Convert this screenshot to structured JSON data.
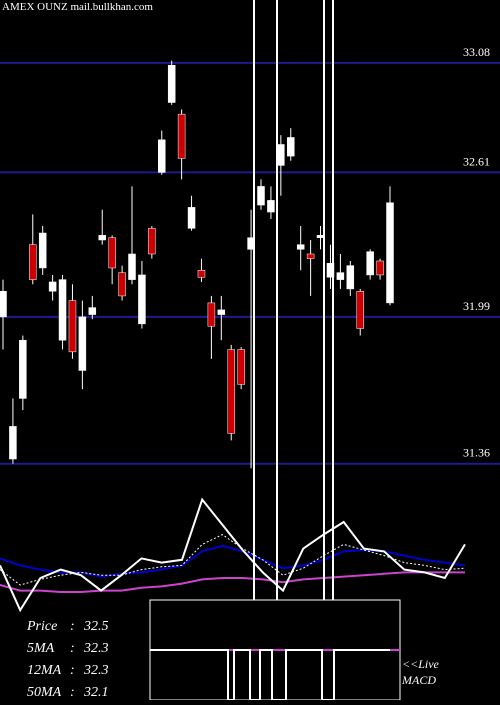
{
  "title": "AMEX  OUNZ mail.bullkhan.com",
  "chart_data": [
    {
      "type": "candlestick",
      "up_color": "#ffffff",
      "down_color": "#cc0000",
      "grid_color": "#1c1c8f",
      "ylim": [
        31.29,
        33.35
      ],
      "yticks": [
        33.08,
        32.61,
        31.99,
        31.36
      ],
      "grid": true,
      "open": [
        31.99,
        31.38,
        31.64,
        32.3,
        32.2,
        32.1,
        31.89,
        32.06,
        31.76,
        32.0,
        32.32,
        32.33,
        32.18,
        32.15,
        31.96,
        32.37,
        32.61,
        32.91,
        32.86,
        32.37,
        32.19,
        32.05,
        32.0,
        31.85,
        31.85,
        32.28,
        32.47,
        32.44,
        32.64,
        32.68,
        32.28,
        32.26,
        32.33,
        32.16,
        32.15,
        32.11,
        32.1,
        32.17,
        32.23,
        32.05
      ],
      "high": [
        32.15,
        31.64,
        31.91,
        32.43,
        32.38,
        32.17,
        32.17,
        32.13,
        32.06,
        32.08,
        32.45,
        32.34,
        32.21,
        32.55,
        32.23,
        32.38,
        32.79,
        33.09,
        32.88,
        32.51,
        32.24,
        32.08,
        32.08,
        31.87,
        31.86,
        32.45,
        32.58,
        32.55,
        32.77,
        32.8,
        32.38,
        32.32,
        32.38,
        32.3,
        32.26,
        32.23,
        32.11,
        32.28,
        32.24,
        32.55
      ],
      "low": [
        31.85,
        31.36,
        31.59,
        32.13,
        32.17,
        32.06,
        31.85,
        31.81,
        31.68,
        31.98,
        32.3,
        32.13,
        32.06,
        32.13,
        31.94,
        32.24,
        32.6,
        32.9,
        32.58,
        32.36,
        32.14,
        31.81,
        31.89,
        31.46,
        31.68,
        31.34,
        32.45,
        32.41,
        32.51,
        32.66,
        32.19,
        32.08,
        32.28,
        32.11,
        32.11,
        32.08,
        31.91,
        32.15,
        32.15,
        32.04
      ],
      "close": [
        32.1,
        31.52,
        31.89,
        32.15,
        32.35,
        32.14,
        32.15,
        31.84,
        31.99,
        32.03,
        32.34,
        32.2,
        32.08,
        32.26,
        32.17,
        32.26,
        32.75,
        33.07,
        32.67,
        32.46,
        32.16,
        31.95,
        32.02,
        31.49,
        31.7,
        32.33,
        32.55,
        32.49,
        32.73,
        32.76,
        32.3,
        32.24,
        32.34,
        32.22,
        32.18,
        32.21,
        31.94,
        32.27,
        32.17,
        32.48
      ]
    },
    {
      "type": "line",
      "ylim": [
        0,
        100
      ],
      "series": [
        {
          "color": "#0000cc",
          "dash": "none",
          "values": [
            44,
            39,
            36,
            34,
            34,
            31,
            33,
            34,
            36,
            39,
            49,
            53,
            49,
            43,
            37,
            39,
            43,
            49,
            50,
            49,
            46,
            43,
            41,
            39
          ]
        },
        {
          "color": "#cc44cc",
          "dash": "none",
          "values": [
            25,
            21,
            21,
            20,
            20,
            21,
            21,
            23,
            24,
            26,
            29,
            30,
            30,
            29,
            27,
            29,
            30,
            31,
            32,
            33,
            34,
            34,
            34,
            34
          ]
        },
        {
          "color": "#ffffff",
          "dash": "2 2",
          "values": [
            36,
            25,
            29,
            32,
            34,
            32,
            32,
            36,
            38,
            39,
            54,
            61,
            51,
            43,
            32,
            37,
            46,
            54,
            50,
            46,
            41,
            39,
            36,
            37
          ]
        },
        {
          "color": "#ffffff",
          "dash": "none",
          "values": [
            39,
            7,
            30,
            36,
            32,
            21,
            32,
            44,
            41,
            43,
            86,
            68,
            50,
            34,
            21,
            51,
            61,
            70,
            51,
            49,
            36,
            34,
            30,
            54
          ]
        }
      ]
    }
  ],
  "legend": [
    {
      "label": "Price",
      "value": 32.5
    },
    {
      "label": "5MA",
      "value": 32.3
    },
    {
      "label": "12MA",
      "value": 32.3
    },
    {
      "label": "50MA",
      "value": 32.1
    }
  ],
  "separator": ":",
  "live_label": "<<Live",
  "macd_label": "MACD"
}
